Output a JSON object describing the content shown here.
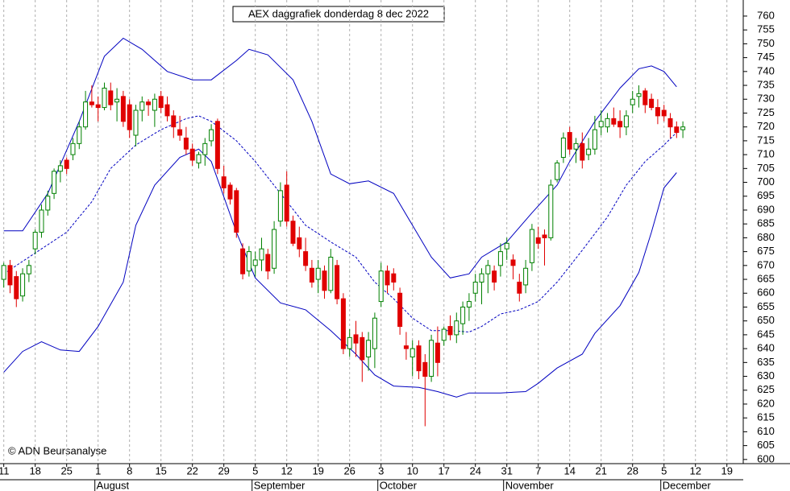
{
  "chart_data": {
    "type": "candlestick",
    "title": "AEX daggrafiek donderdag 8 dec 2022",
    "copyright": "© ADN Beursanalyse",
    "ylim": [
      598.5,
      765.8
    ],
    "yticks": [
      600,
      605,
      610,
      615,
      620,
      625,
      630,
      635,
      640,
      645,
      650,
      655,
      660,
      665,
      670,
      675,
      680,
      685,
      690,
      695,
      700,
      705,
      710,
      715,
      720,
      725,
      730,
      735,
      740,
      745,
      750,
      755,
      760
    ],
    "xlim": [
      -0.6,
      117.6
    ],
    "xticks": [
      {
        "value": 0,
        "label": "11"
      },
      {
        "value": 5,
        "label": "18"
      },
      {
        "value": 10,
        "label": "25"
      },
      {
        "value": 15,
        "label": "1"
      },
      {
        "value": 20,
        "label": "8"
      },
      {
        "value": 25,
        "label": "15"
      },
      {
        "value": 30,
        "label": "22"
      },
      {
        "value": 35,
        "label": "29"
      },
      {
        "value": 40,
        "label": "5"
      },
      {
        "value": 45,
        "label": "12"
      },
      {
        "value": 50,
        "label": "19"
      },
      {
        "value": 55,
        "label": "26"
      },
      {
        "value": 60,
        "label": "3"
      },
      {
        "value": 65,
        "label": "10"
      },
      {
        "value": 70,
        "label": "17"
      },
      {
        "value": 75,
        "label": "24"
      },
      {
        "value": 80,
        "label": "31"
      },
      {
        "value": 85,
        "label": "7"
      },
      {
        "value": 90,
        "label": "14"
      },
      {
        "value": 95,
        "label": "21"
      },
      {
        "value": 100,
        "label": "28"
      },
      {
        "value": 105,
        "label": "5"
      },
      {
        "value": 110,
        "label": "12"
      },
      {
        "value": 115,
        "label": "19"
      }
    ],
    "months": [
      {
        "value": 15,
        "label": "August"
      },
      {
        "value": 40,
        "label": "September"
      },
      {
        "value": 60,
        "label": "October"
      },
      {
        "value": 80,
        "label": "November"
      },
      {
        "value": 105,
        "label": "December"
      }
    ],
    "up_color": "#008000",
    "down_color": "#e00000",
    "candles": [
      [
        665,
        671,
        662,
        670
      ],
      [
        670,
        672,
        660,
        663
      ],
      [
        666,
        668,
        655,
        658
      ],
      [
        659,
        669,
        657,
        667
      ],
      [
        667,
        672,
        664,
        670
      ],
      [
        676,
        683,
        674,
        682
      ],
      [
        682,
        692,
        680,
        690
      ],
      [
        690,
        697,
        688,
        695
      ],
      [
        696,
        705,
        694,
        704
      ],
      [
        704,
        708,
        700,
        706
      ],
      [
        708,
        709,
        703,
        705
      ],
      [
        710,
        716,
        708,
        714
      ],
      [
        714,
        722,
        712,
        720
      ],
      [
        720,
        733,
        719,
        729
      ],
      [
        729,
        735,
        727,
        728
      ],
      [
        728,
        731,
        722,
        727
      ],
      [
        727,
        736,
        726,
        734
      ],
      [
        733,
        736,
        726,
        728
      ],
      [
        729,
        734,
        722,
        730
      ],
      [
        731,
        733,
        720,
        722
      ],
      [
        728,
        730,
        716,
        719
      ],
      [
        717,
        728,
        713,
        726
      ],
      [
        726,
        731,
        722,
        729
      ],
      [
        729,
        730,
        724,
        728
      ],
      [
        726,
        732,
        720,
        730
      ],
      [
        731,
        733,
        725,
        727
      ],
      [
        728,
        731,
        722,
        724
      ],
      [
        724,
        726,
        716,
        720
      ],
      [
        719,
        724,
        715,
        717
      ],
      [
        716,
        720,
        710,
        712
      ],
      [
        712,
        714,
        706,
        708
      ],
      [
        707,
        711,
        705,
        710
      ],
      [
        710,
        716,
        706,
        714
      ],
      [
        715,
        721,
        713,
        719
      ],
      [
        722,
        723,
        703,
        705
      ],
      [
        702,
        706,
        696,
        698
      ],
      [
        699,
        700,
        692,
        694
      ],
      [
        697,
        698,
        680,
        682
      ],
      [
        676,
        678,
        665,
        667
      ],
      [
        668,
        677,
        666,
        675
      ],
      [
        670,
        675,
        666,
        672
      ],
      [
        672,
        680,
        668,
        676
      ],
      [
        674,
        676,
        665,
        668
      ],
      [
        669,
        686,
        667,
        683
      ],
      [
        686,
        700,
        684,
        697
      ],
      [
        699,
        704,
        684,
        686
      ],
      [
        686,
        688,
        677,
        678
      ],
      [
        680,
        684,
        673,
        676
      ],
      [
        675,
        680,
        668,
        670
      ],
      [
        669,
        672,
        662,
        664
      ],
      [
        665,
        672,
        660,
        669
      ],
      [
        668,
        670,
        658,
        661
      ],
      [
        661,
        676,
        660,
        673
      ],
      [
        670,
        672,
        656,
        658
      ],
      [
        658,
        660,
        638,
        640
      ],
      [
        640,
        647,
        637,
        644
      ],
      [
        645,
        650,
        637,
        642
      ],
      [
        644,
        646,
        628,
        636
      ],
      [
        637,
        646,
        632,
        643
      ],
      [
        640,
        653,
        633,
        651
      ],
      [
        657,
        671,
        655,
        668
      ],
      [
        668,
        670,
        660,
        663
      ],
      [
        667,
        669,
        661,
        664
      ],
      [
        660,
        662,
        645,
        648
      ],
      [
        641,
        646,
        636,
        640
      ],
      [
        637,
        643,
        630,
        640
      ],
      [
        641,
        643,
        629,
        632
      ],
      [
        635,
        638,
        612,
        630
      ],
      [
        630,
        645,
        628,
        643
      ],
      [
        642,
        648,
        630,
        635
      ],
      [
        643,
        648,
        641,
        647
      ],
      [
        648,
        652,
        643,
        645
      ],
      [
        645,
        653,
        642,
        650
      ],
      [
        649,
        657,
        645,
        655
      ],
      [
        655,
        660,
        650,
        657
      ],
      [
        660,
        667,
        657,
        664
      ],
      [
        664,
        669,
        656,
        667
      ],
      [
        667,
        672,
        660,
        670
      ],
      [
        668,
        670,
        661,
        664
      ],
      [
        670,
        678,
        666,
        675
      ],
      [
        676,
        680,
        672,
        678
      ],
      [
        672,
        674,
        665,
        670
      ],
      [
        664,
        667,
        657,
        660
      ],
      [
        663,
        672,
        660,
        669
      ],
      [
        671,
        685,
        668,
        683
      ],
      [
        680,
        684,
        676,
        678
      ],
      [
        681,
        683,
        670,
        680
      ],
      [
        680,
        701,
        679,
        699
      ],
      [
        701,
        708,
        700,
        707
      ],
      [
        709,
        718,
        707,
        716
      ],
      [
        718,
        720,
        710,
        712
      ],
      [
        712,
        716,
        707,
        714
      ],
      [
        714,
        718,
        705,
        708
      ],
      [
        710,
        716,
        708,
        712
      ],
      [
        712,
        724,
        710,
        719
      ],
      [
        720,
        726,
        717,
        722
      ],
      [
        720,
        725,
        718,
        723
      ],
      [
        723,
        727,
        720,
        721
      ],
      [
        722,
        726,
        716,
        720
      ],
      [
        720,
        726,
        717,
        724
      ],
      [
        728,
        733,
        725,
        730
      ],
      [
        731,
        735,
        727,
        732
      ],
      [
        733,
        734,
        725,
        728
      ],
      [
        730,
        732,
        726,
        727
      ],
      [
        727,
        730,
        721,
        724
      ],
      [
        726,
        728,
        722,
        724
      ],
      [
        723,
        725,
        716,
        720
      ],
      [
        720,
        722,
        716,
        718
      ],
      [
        719,
        722,
        716,
        720
      ]
    ],
    "bands": [
      {
        "color": "#0000c0",
        "dashed": false,
        "x": [
          0,
          3,
          7,
          12,
          16,
          19,
          22,
          26,
          30,
          33,
          37,
          39,
          42,
          46,
          49,
          52,
          55,
          58,
          62,
          65,
          68,
          71,
          74,
          76,
          80,
          84,
          88,
          90,
          94,
          98,
          101,
          103,
          105,
          107
        ],
        "values": [
          682.5,
          682.5,
          696,
          722,
          745.5,
          752,
          748,
          740,
          737,
          737,
          744,
          748,
          746,
          737,
          722,
          703,
          699.5,
          700.5,
          696,
          684.5,
          673,
          665.5,
          667,
          673,
          678.5,
          689,
          699,
          707.5,
          722,
          734,
          741,
          742,
          740,
          734.5
        ]
      },
      {
        "color": "#0000c0",
        "dashed": true,
        "x": [
          0,
          4,
          10,
          14,
          17,
          21,
          25,
          29,
          31,
          33,
          37,
          40,
          44,
          48,
          52,
          56,
          59,
          62,
          65,
          68,
          71,
          74,
          76,
          79,
          82,
          85,
          88,
          92,
          96,
          99,
          102,
          105,
          107
        ],
        "values": [
          667,
          673,
          682,
          693,
          705,
          713.5,
          719,
          723,
          724,
          722,
          715,
          707.5,
          696,
          684.5,
          678.5,
          673,
          664,
          658,
          651,
          646.5,
          646.5,
          646,
          648,
          652.5,
          654,
          657,
          664,
          675.5,
          687.5,
          699,
          707.5,
          713.5,
          718
        ]
      },
      {
        "color": "#0000c0",
        "dashed": false,
        "x": [
          0,
          3,
          6,
          9,
          12,
          15,
          19,
          21,
          24,
          28,
          31,
          33,
          37,
          40,
          44,
          48,
          52,
          56,
          59,
          62,
          66,
          69,
          72,
          74,
          79,
          83,
          85,
          88,
          92,
          94,
          98,
          101,
          103,
          105,
          107
        ],
        "values": [
          631.5,
          639,
          642.5,
          639.5,
          639,
          648,
          664,
          684.5,
          699,
          709,
          712,
          707.5,
          682,
          665.5,
          656.5,
          654,
          646.5,
          638,
          630.5,
          626.5,
          626,
          624.5,
          622.5,
          624,
          624,
          624.5,
          627.5,
          633,
          638,
          645.5,
          655.5,
          667.5,
          682,
          698,
          703.5
        ]
      }
    ]
  }
}
